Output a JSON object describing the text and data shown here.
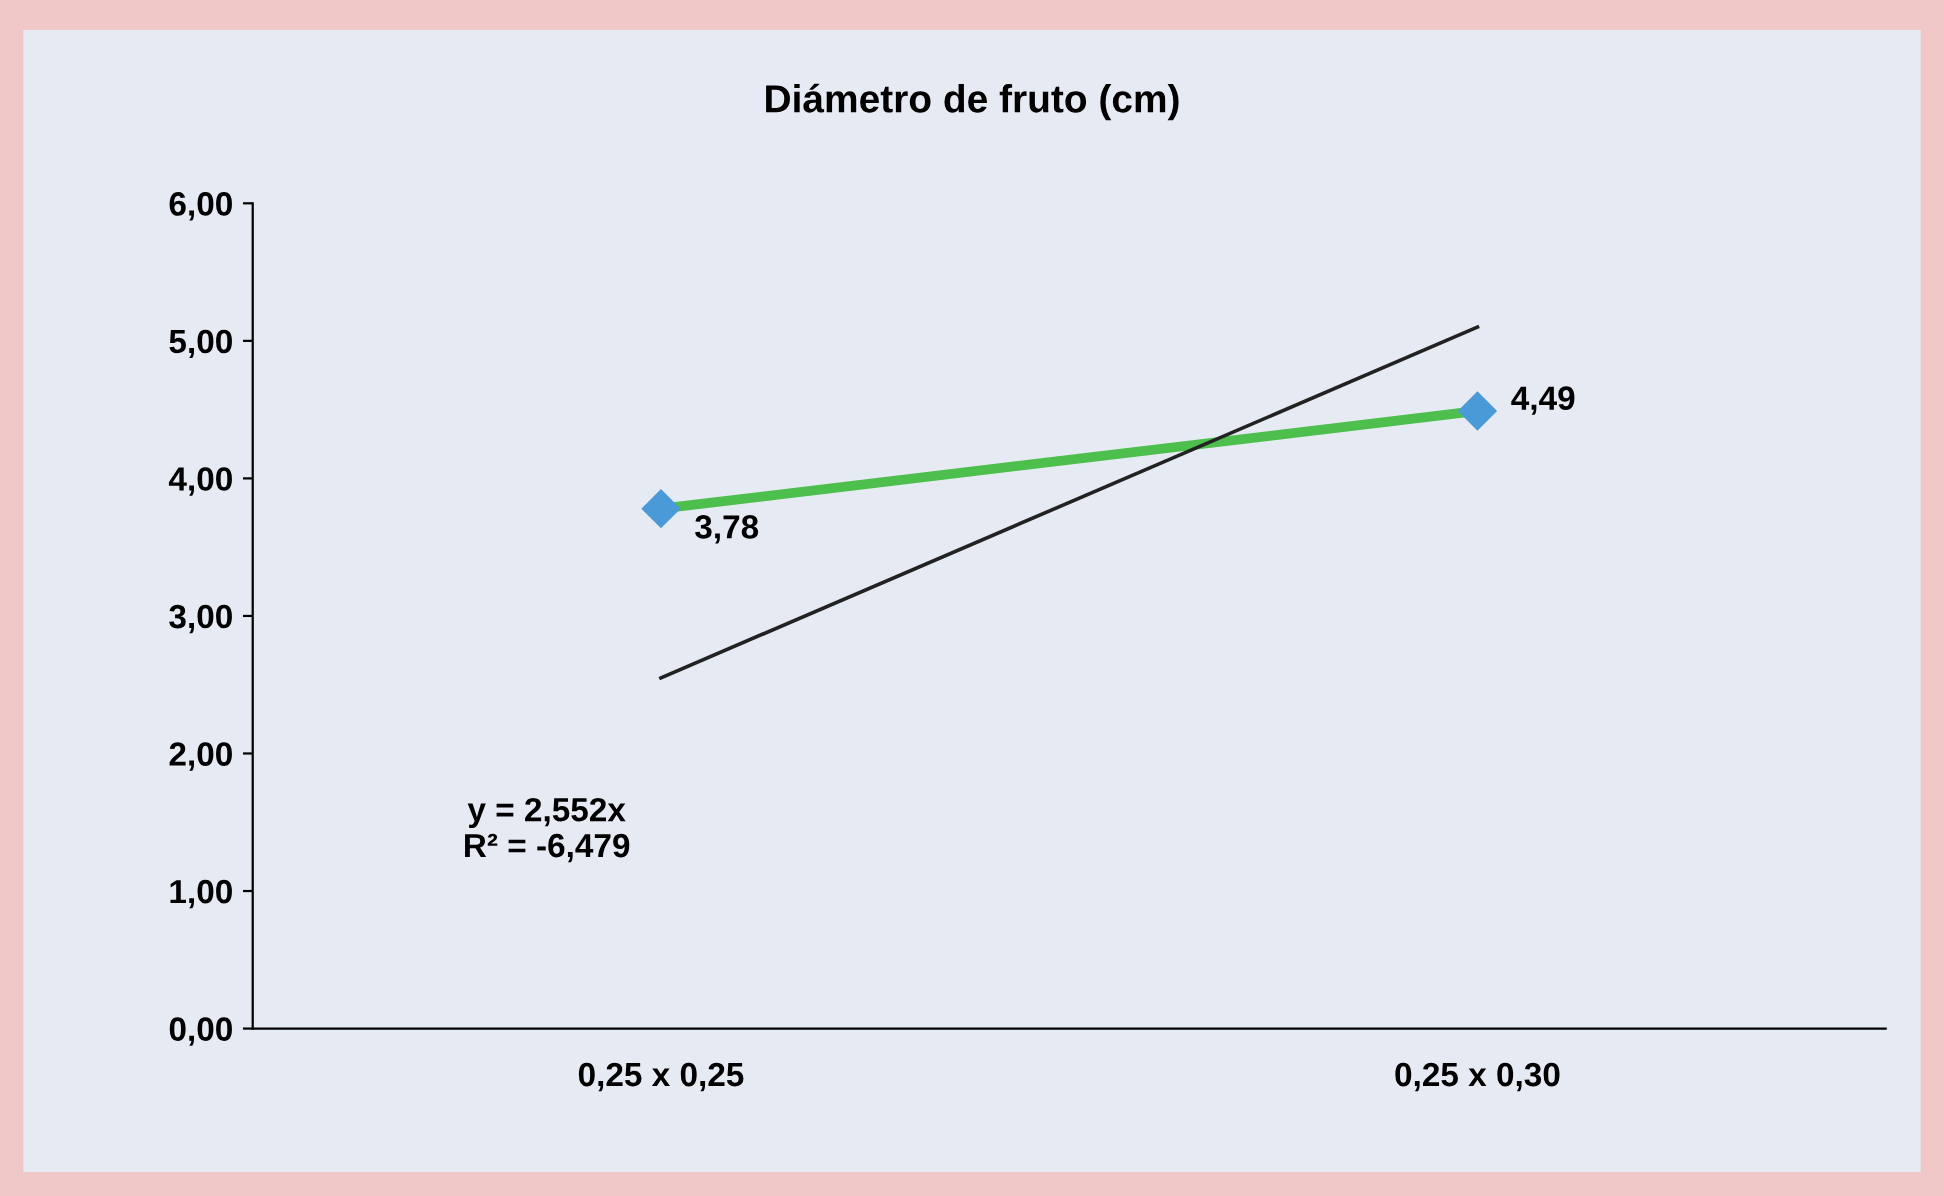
{
  "chart_data": {
    "type": "line",
    "title": "Diámetro de fruto (cm)",
    "categories": [
      "0,25 x 0,25",
      "0,25 x 0,30"
    ],
    "series": [
      {
        "color": "#4cbf4c",
        "colors": [
          "#4a9ad8",
          "#4a9ad8"
        ],
        "values": [
          3.78,
          4.49
        ],
        "value_labels": [
          "3,78",
          "4,49"
        ],
        "marker": "diamond",
        "line_style": "solid"
      },
      {
        "color": "#222222",
        "values": [
          2.55,
          5.1
        ],
        "marker": "none",
        "line_style": "solid"
      }
    ],
    "ylim": [
      0,
      6
    ],
    "yticks": [
      {
        "value": 0,
        "label": "0,00"
      },
      {
        "value": 1,
        "label": "1,00"
      },
      {
        "value": 2,
        "label": "2,00"
      },
      {
        "value": 3,
        "label": "3,00"
      },
      {
        "value": 4,
        "label": "4,00"
      },
      {
        "value": 5,
        "label": "5,00"
      },
      {
        "value": 6,
        "label": "6,00"
      }
    ],
    "annotations": [
      "y = 2,552x\nR² = -6,479"
    ],
    "grid": false
  }
}
